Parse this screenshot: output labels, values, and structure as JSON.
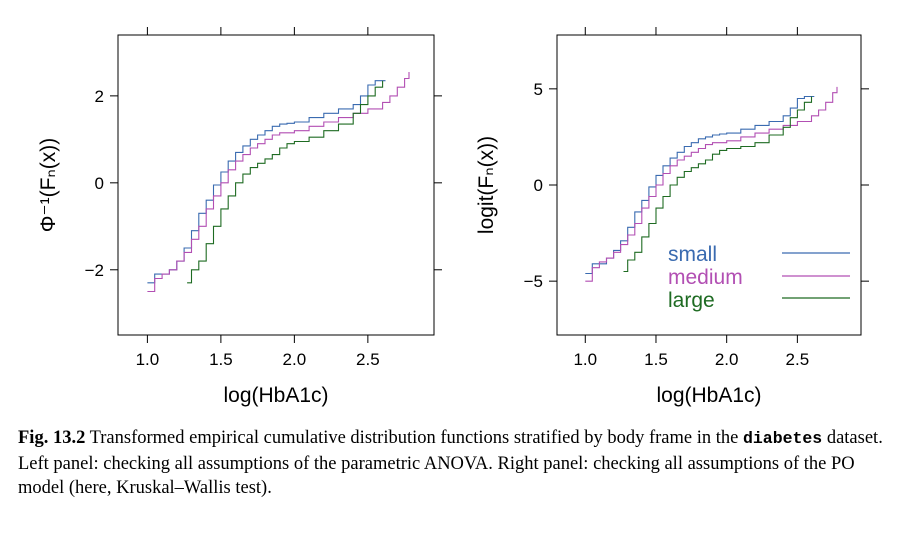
{
  "colors": {
    "small": "#3a6bb0",
    "medium": "#b24fb3",
    "large": "#1e6b22"
  },
  "legend": {
    "small": "small",
    "medium": "medium",
    "large": "large"
  },
  "chart_data": [
    {
      "type": "line",
      "panel": "left",
      "xlabel": "log(HbA1c)",
      "ylabel_text": "Φ⁻¹(Fₙ(x))",
      "xlim": [
        0.8,
        2.95
      ],
      "ylim": [
        -3.5,
        3.4
      ],
      "xticks": [
        1.0,
        1.5,
        2.0,
        2.5
      ],
      "xtick_labels": [
        "1.0",
        "1.5",
        "2.0",
        "2.5"
      ],
      "yticks": [
        -2,
        0,
        2
      ],
      "ytick_labels": [
        "−2",
        "0",
        "2"
      ],
      "series": [
        {
          "name": "small",
          "x": [
            1.0,
            1.05,
            1.15,
            1.2,
            1.25,
            1.3,
            1.35,
            1.4,
            1.45,
            1.5,
            1.55,
            1.6,
            1.65,
            1.7,
            1.75,
            1.8,
            1.85,
            1.9,
            1.95,
            2.0,
            2.1,
            2.2,
            2.3,
            2.4,
            2.45,
            2.5,
            2.55,
            2.6,
            2.62
          ],
          "y": [
            -2.3,
            -2.1,
            -2.0,
            -1.8,
            -1.5,
            -1.1,
            -0.7,
            -0.4,
            -0.05,
            0.25,
            0.5,
            0.7,
            0.85,
            1.0,
            1.1,
            1.2,
            1.3,
            1.35,
            1.37,
            1.4,
            1.5,
            1.6,
            1.7,
            1.8,
            2.0,
            2.25,
            2.35,
            2.35,
            2.35
          ]
        },
        {
          "name": "medium",
          "x": [
            1.0,
            1.05,
            1.1,
            1.15,
            1.2,
            1.25,
            1.3,
            1.35,
            1.4,
            1.45,
            1.5,
            1.55,
            1.6,
            1.65,
            1.7,
            1.75,
            1.8,
            1.85,
            1.9,
            2.0,
            2.1,
            2.2,
            2.3,
            2.4,
            2.5,
            2.6,
            2.65,
            2.7,
            2.75,
            2.78
          ],
          "y": [
            -2.5,
            -2.2,
            -2.1,
            -2.0,
            -1.8,
            -1.6,
            -1.3,
            -1.0,
            -0.6,
            -0.3,
            0.0,
            0.3,
            0.5,
            0.65,
            0.8,
            0.9,
            1.0,
            1.1,
            1.15,
            1.2,
            1.3,
            1.4,
            1.5,
            1.6,
            1.7,
            1.85,
            2.0,
            2.2,
            2.4,
            2.55
          ]
        },
        {
          "name": "large",
          "x": [
            1.27,
            1.3,
            1.35,
            1.4,
            1.45,
            1.5,
            1.55,
            1.6,
            1.65,
            1.7,
            1.75,
            1.8,
            1.85,
            1.9,
            1.95,
            2.0,
            2.1,
            2.2,
            2.3,
            2.4,
            2.45,
            2.5,
            2.55,
            2.6
          ],
          "y": [
            -2.3,
            -2.0,
            -1.8,
            -1.4,
            -1.0,
            -0.6,
            -0.3,
            0.0,
            0.2,
            0.35,
            0.45,
            0.55,
            0.65,
            0.8,
            0.9,
            0.95,
            1.05,
            1.2,
            1.35,
            1.6,
            1.8,
            2.0,
            2.2,
            2.35
          ]
        }
      ]
    },
    {
      "type": "line",
      "panel": "right",
      "xlabel": "log(HbA1c)",
      "ylabel_text": "logit(Fₙ(x))",
      "xlim": [
        0.8,
        2.95
      ],
      "ylim": [
        -7.8,
        7.8
      ],
      "xticks": [
        1.0,
        1.5,
        2.0,
        2.5
      ],
      "xtick_labels": [
        "1.0",
        "1.5",
        "2.0",
        "2.5"
      ],
      "yticks": [
        -5,
        0,
        5
      ],
      "ytick_labels": [
        "−5",
        "0",
        "5"
      ],
      "series": [
        {
          "name": "small",
          "x": [
            1.0,
            1.05,
            1.15,
            1.2,
            1.25,
            1.3,
            1.35,
            1.4,
            1.45,
            1.5,
            1.55,
            1.6,
            1.65,
            1.7,
            1.75,
            1.8,
            1.85,
            1.9,
            1.95,
            2.0,
            2.1,
            2.2,
            2.3,
            2.4,
            2.45,
            2.5,
            2.55,
            2.6,
            2.62
          ],
          "y": [
            -4.6,
            -4.1,
            -3.8,
            -3.4,
            -2.9,
            -2.2,
            -1.4,
            -0.8,
            -0.1,
            0.5,
            1.0,
            1.4,
            1.7,
            2.0,
            2.2,
            2.4,
            2.5,
            2.6,
            2.65,
            2.7,
            2.9,
            3.1,
            3.3,
            3.6,
            4.0,
            4.5,
            4.6,
            4.6,
            4.6
          ]
        },
        {
          "name": "medium",
          "x": [
            1.0,
            1.05,
            1.1,
            1.15,
            1.2,
            1.25,
            1.3,
            1.35,
            1.4,
            1.45,
            1.5,
            1.55,
            1.6,
            1.65,
            1.7,
            1.75,
            1.8,
            1.85,
            1.9,
            2.0,
            2.1,
            2.2,
            2.3,
            2.4,
            2.5,
            2.6,
            2.65,
            2.7,
            2.75,
            2.78
          ],
          "y": [
            -5.0,
            -4.3,
            -4.0,
            -3.8,
            -3.5,
            -3.1,
            -2.6,
            -2.0,
            -1.2,
            -0.6,
            0.0,
            0.6,
            1.0,
            1.3,
            1.5,
            1.7,
            1.9,
            2.1,
            2.2,
            2.3,
            2.5,
            2.7,
            2.9,
            3.1,
            3.3,
            3.6,
            3.9,
            4.3,
            4.8,
            5.1
          ]
        },
        {
          "name": "large",
          "x": [
            1.27,
            1.3,
            1.35,
            1.4,
            1.45,
            1.5,
            1.55,
            1.6,
            1.65,
            1.7,
            1.75,
            1.8,
            1.85,
            1.9,
            1.95,
            2.0,
            2.1,
            2.2,
            2.3,
            2.4,
            2.45,
            2.5,
            2.55,
            2.6
          ],
          "y": [
            -4.5,
            -3.9,
            -3.5,
            -2.7,
            -2.0,
            -1.2,
            -0.6,
            0.0,
            0.4,
            0.7,
            0.9,
            1.1,
            1.3,
            1.6,
            1.8,
            1.9,
            2.0,
            2.2,
            2.6,
            3.0,
            3.5,
            3.9,
            4.3,
            4.6
          ]
        }
      ]
    }
  ],
  "caption": {
    "fig_label": "Fig. 13.2",
    "text_before": " Transformed empirical cumulative distribution functions stratified by body frame in the ",
    "code": "diabetes",
    "text_after": " dataset. Left panel: checking all assumptions of the parametric ANOVA. Right panel: checking all assumptions of the PO model (here, Kruskal–Wallis test)."
  }
}
